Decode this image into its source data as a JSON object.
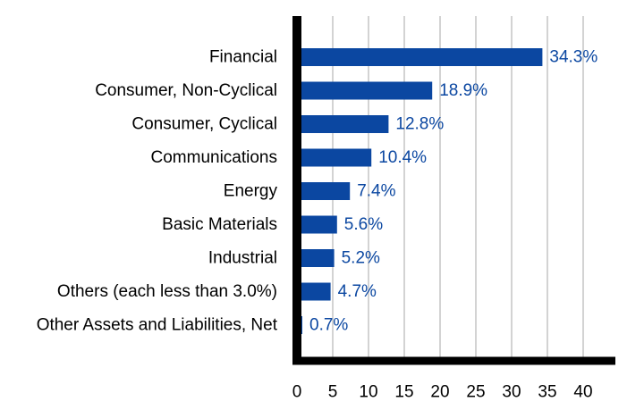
{
  "chart_data": {
    "type": "bar",
    "orientation": "horizontal",
    "categories": [
      "Financial",
      "Consumer, Non-Cyclical",
      "Consumer, Cyclical",
      "Communications",
      "Energy",
      "Basic Materials",
      "Industrial",
      "Others (each less than 3.0%)",
      "Other Assets and Liabilities, Net"
    ],
    "values": [
      34.3,
      18.9,
      12.8,
      10.4,
      7.4,
      5.6,
      5.2,
      4.7,
      0.7
    ],
    "value_labels": [
      "34.3%",
      "18.9%",
      "12.8%",
      "10.4%",
      "7.4%",
      "5.6%",
      "5.2%",
      "4.7%",
      "0.7%"
    ],
    "xlim": [
      0,
      44
    ],
    "x_ticks": [
      0,
      5,
      10,
      15,
      20,
      25,
      30,
      35,
      40
    ],
    "grid": "vertical",
    "bar_color": "#0B47A1",
    "value_label_color": "#0B47A1",
    "axis_color": "#000000",
    "grid_color": "#D3D3D3",
    "title": "",
    "xlabel": "",
    "ylabel": ""
  }
}
